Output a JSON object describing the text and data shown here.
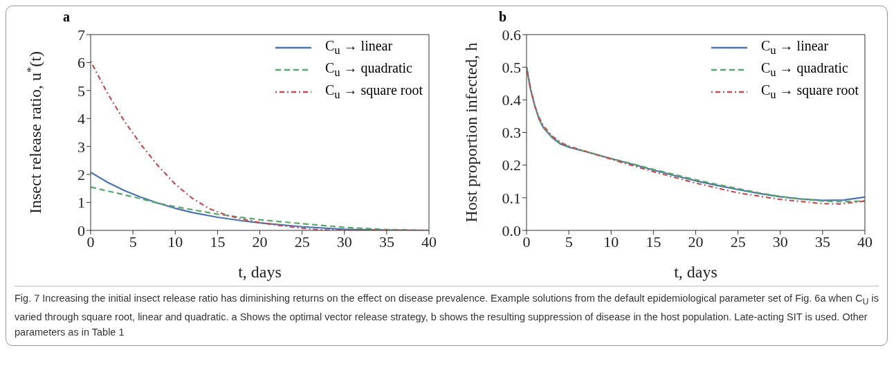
{
  "chart_data": [
    {
      "type": "line",
      "title": "a",
      "xlabel": "t, days",
      "ylabel": "Insect release ratio, u$^{*}$(t)",
      "xlim": [
        0,
        40
      ],
      "xticks": [
        0,
        5,
        10,
        15,
        20,
        25,
        30,
        35,
        40
      ],
      "ylim": [
        0,
        7
      ],
      "yticks": [
        0,
        1,
        2,
        3,
        4,
        5,
        6,
        7
      ],
      "legend": "top right",
      "marker": "none",
      "series": [
        {
          "name": "C$_{u}$ → linear",
          "color": "#4c72b0",
          "line_style": "solid",
          "x": [
            0,
            2,
            4,
            6,
            8,
            10,
            12,
            15,
            18,
            20,
            25,
            30,
            35,
            40
          ],
          "values": [
            2.08,
            1.72,
            1.42,
            1.18,
            0.97,
            0.79,
            0.64,
            0.47,
            0.34,
            0.27,
            0.13,
            0.04,
            0.01,
            0
          ]
        },
        {
          "name": "C$_{u}$ → quadratic",
          "color": "#55a868",
          "line_style": "dashed",
          "x": [
            0,
            5,
            8,
            10,
            15,
            20,
            25,
            30,
            35,
            40
          ],
          "values": [
            1.55,
            1.2,
            0.97,
            0.85,
            0.58,
            0.38,
            0.24,
            0.11,
            0.03,
            0
          ]
        },
        {
          "name": "C$_{u}$ → square root",
          "color": "#c44e52",
          "line_style": "dotted",
          "x": [
            0,
            2,
            4,
            6,
            8,
            10,
            12,
            14,
            16,
            18,
            20,
            22,
            25,
            27,
            30,
            40
          ],
          "values": [
            6.05,
            4.9,
            3.9,
            3.05,
            2.3,
            1.65,
            1.15,
            0.78,
            0.55,
            0.4,
            0.28,
            0.19,
            0.08,
            0.02,
            0,
            0
          ]
        }
      ],
      "annotations": [
        "Fig. 7 Increasing the initial insect release ratio has diminishing returns on the effect on disease prevalence. Example solutions from the default epidemiological parameter set of Fig. 6a when C$_{U}$ is varied through square root, linear and quadratic. a Shows the optimal vector release strategy, b shows the resulting suppression of disease in the host population. Late-acting SIT is used. Other parameters as in Table 1"
      ]
    },
    {
      "type": "line",
      "title": "b",
      "xlabel": "t, days",
      "ylabel": "Host proportion infected, h",
      "xlim": [
        0,
        40
      ],
      "xticks": [
        0,
        5,
        10,
        15,
        20,
        25,
        30,
        35,
        40
      ],
      "ylim": [
        0,
        0.6
      ],
      "yticks": [
        {
          "value": 0,
          "label": "0.0"
        },
        {
          "value": 0.1,
          "label": "0.1"
        },
        {
          "value": 0.2,
          "label": "0.2"
        },
        {
          "value": 0.3,
          "label": "0.3"
        },
        {
          "value": 0.4,
          "label": "0.4"
        },
        {
          "value": 0.5,
          "label": "0.5"
        },
        {
          "value": 0.6,
          "label": "0.6"
        }
      ],
      "legend": "top right",
      "marker": "none",
      "series": [
        {
          "name": "C$_{u}$ → linear",
          "color": "#4c72b0",
          "line_style": "solid",
          "x": [
            0,
            0.5,
            1,
            1.5,
            2,
            3,
            4,
            5,
            7.5,
            10,
            12.5,
            15,
            17.5,
            20,
            22.5,
            25,
            27.5,
            30,
            32.5,
            35,
            37.5,
            40
          ],
          "values": [
            0.5,
            0.43,
            0.38,
            0.34,
            0.315,
            0.285,
            0.265,
            0.255,
            0.238,
            0.22,
            0.203,
            0.185,
            0.168,
            0.152,
            0.138,
            0.125,
            0.113,
            0.103,
            0.096,
            0.092,
            0.093,
            0.102
          ]
        },
        {
          "name": "C$_{u}$ → quadratic",
          "color": "#55a868",
          "line_style": "dashed",
          "x": [
            0,
            0.5,
            1,
            1.5,
            2,
            3,
            4,
            5,
            7.5,
            10,
            12.5,
            15,
            17.5,
            20,
            22.5,
            25,
            27.5,
            30,
            32.5,
            35,
            37,
            40
          ],
          "values": [
            0.5,
            0.43,
            0.38,
            0.34,
            0.315,
            0.287,
            0.267,
            0.257,
            0.238,
            0.22,
            0.204,
            0.187,
            0.171,
            0.155,
            0.141,
            0.128,
            0.115,
            0.104,
            0.096,
            0.09,
            0.088,
            0.09
          ]
        },
        {
          "name": "C$_{u}$ → square root",
          "color": "#c44e52",
          "line_style": "dotted",
          "x": [
            0,
            0.5,
            1,
            1.5,
            2,
            3,
            4,
            5,
            7.5,
            10,
            15,
            20,
            25,
            30,
            35,
            37,
            40
          ],
          "values": [
            0.5,
            0.43,
            0.38,
            0.345,
            0.32,
            0.29,
            0.27,
            0.258,
            0.238,
            0.218,
            0.18,
            0.145,
            0.115,
            0.095,
            0.082,
            0.081,
            0.09
          ]
        }
      ]
    }
  ]
}
